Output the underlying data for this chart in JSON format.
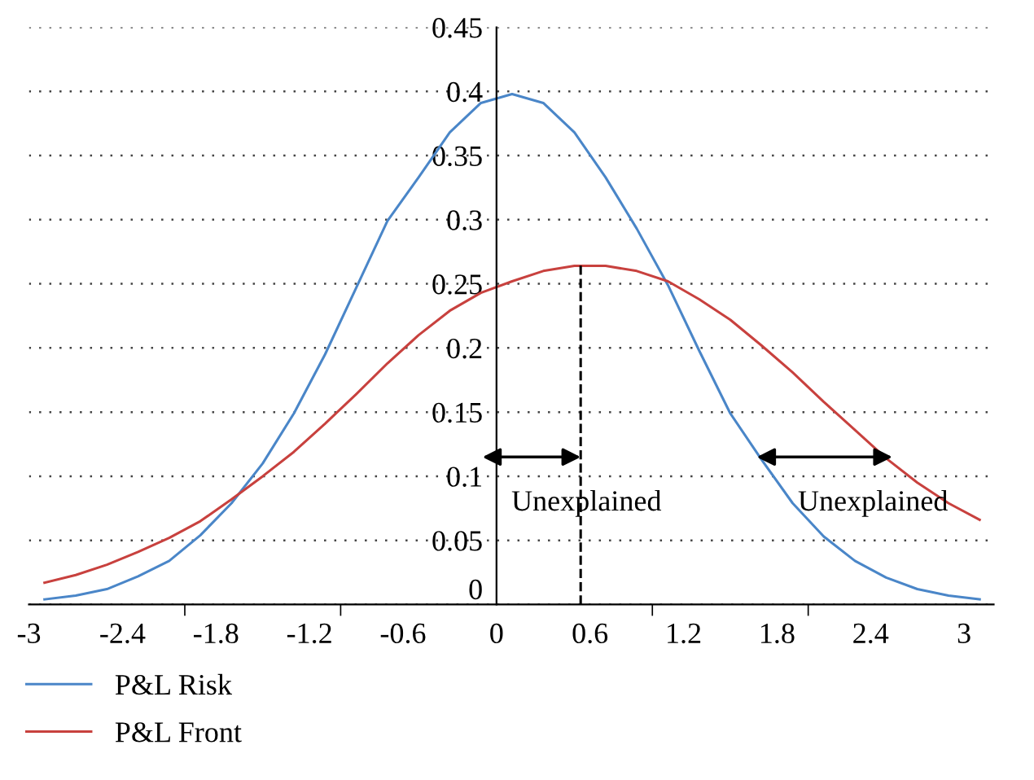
{
  "chart_data": {
    "type": "line",
    "xlim": [
      -3,
      3.19
    ],
    "ylim": [
      0,
      0.45
    ],
    "xticks": [
      -3,
      -2.4,
      -1.8,
      -1.2,
      -0.6,
      0,
      0.6,
      1.2,
      1.8,
      2.4,
      3,
      {
        "value": -2,
        "label": null
      },
      {
        "value": -1,
        "label": null
      },
      {
        "value": 1,
        "label": null
      },
      {
        "value": 2,
        "label": null
      }
    ],
    "yticks": [
      0,
      0.05,
      0.1,
      0.15,
      0.2,
      0.25,
      0.3,
      0.35,
      0.4,
      0.45
    ],
    "grid": "y",
    "legend": "bottom",
    "line_style": "solid",
    "marker": "none",
    "series": [
      {
        "name": "P&L Risk",
        "color": "#4a86c8",
        "x": [
          -2.9,
          -2.7,
          -2.5,
          -2.3,
          -2.1,
          -1.9,
          -1.7,
          -1.5,
          -1.3,
          -1.1,
          -0.9,
          -0.7,
          -0.5,
          -0.3,
          -0.1,
          0.1,
          0.3,
          0.5,
          0.7,
          0.9,
          1.1,
          1.3,
          1.5,
          1.7,
          1.9,
          2.1,
          2.3,
          2.5,
          2.7,
          2.9,
          3.1
        ],
        "values": [
          0.004,
          0.007,
          0.012,
          0.022,
          0.034,
          0.054,
          0.079,
          0.11,
          0.149,
          0.195,
          0.247,
          0.299,
          0.333,
          0.368,
          0.391,
          0.398,
          0.391,
          0.368,
          0.333,
          0.293,
          0.249,
          0.198,
          0.149,
          0.113,
          0.079,
          0.053,
          0.034,
          0.021,
          0.012,
          0.007,
          0.004
        ]
      },
      {
        "name": "P&L Front",
        "color": "#c8413e",
        "x": [
          -2.9,
          -2.7,
          -2.5,
          -2.3,
          -2.1,
          -1.9,
          -1.7,
          -1.5,
          -1.3,
          -1.1,
          -0.9,
          -0.7,
          -0.5,
          -0.3,
          -0.1,
          0.1,
          0.3,
          0.5,
          0.7,
          0.9,
          1.1,
          1.3,
          1.5,
          1.7,
          1.9,
          2.1,
          2.3,
          2.5,
          2.7,
          2.9,
          3.1
        ],
        "values": [
          0.017,
          0.023,
          0.031,
          0.041,
          0.052,
          0.065,
          0.082,
          0.1,
          0.119,
          0.141,
          0.164,
          0.188,
          0.21,
          0.229,
          0.243,
          0.252,
          0.26,
          0.264,
          0.264,
          0.26,
          0.252,
          0.238,
          0.222,
          0.202,
          0.181,
          0.158,
          0.136,
          0.114,
          0.095,
          0.079,
          0.066
        ]
      },
      {
        "color": "#000000",
        "line_style": "dashed",
        "x": [
          0.54,
          0.54
        ],
        "values": [
          0,
          0.265
        ]
      },
      {
        "color": "#000000",
        "x": [
          -0.09,
          0.54
        ],
        "values": [
          0.115,
          0.115
        ]
      },
      {
        "color": "#000000",
        "x": [
          1.67,
          2.54
        ],
        "values": [
          0.115,
          0.115
        ]
      }
    ],
    "annotations": [
      "Unexplained",
      "Unexplained"
    ]
  }
}
